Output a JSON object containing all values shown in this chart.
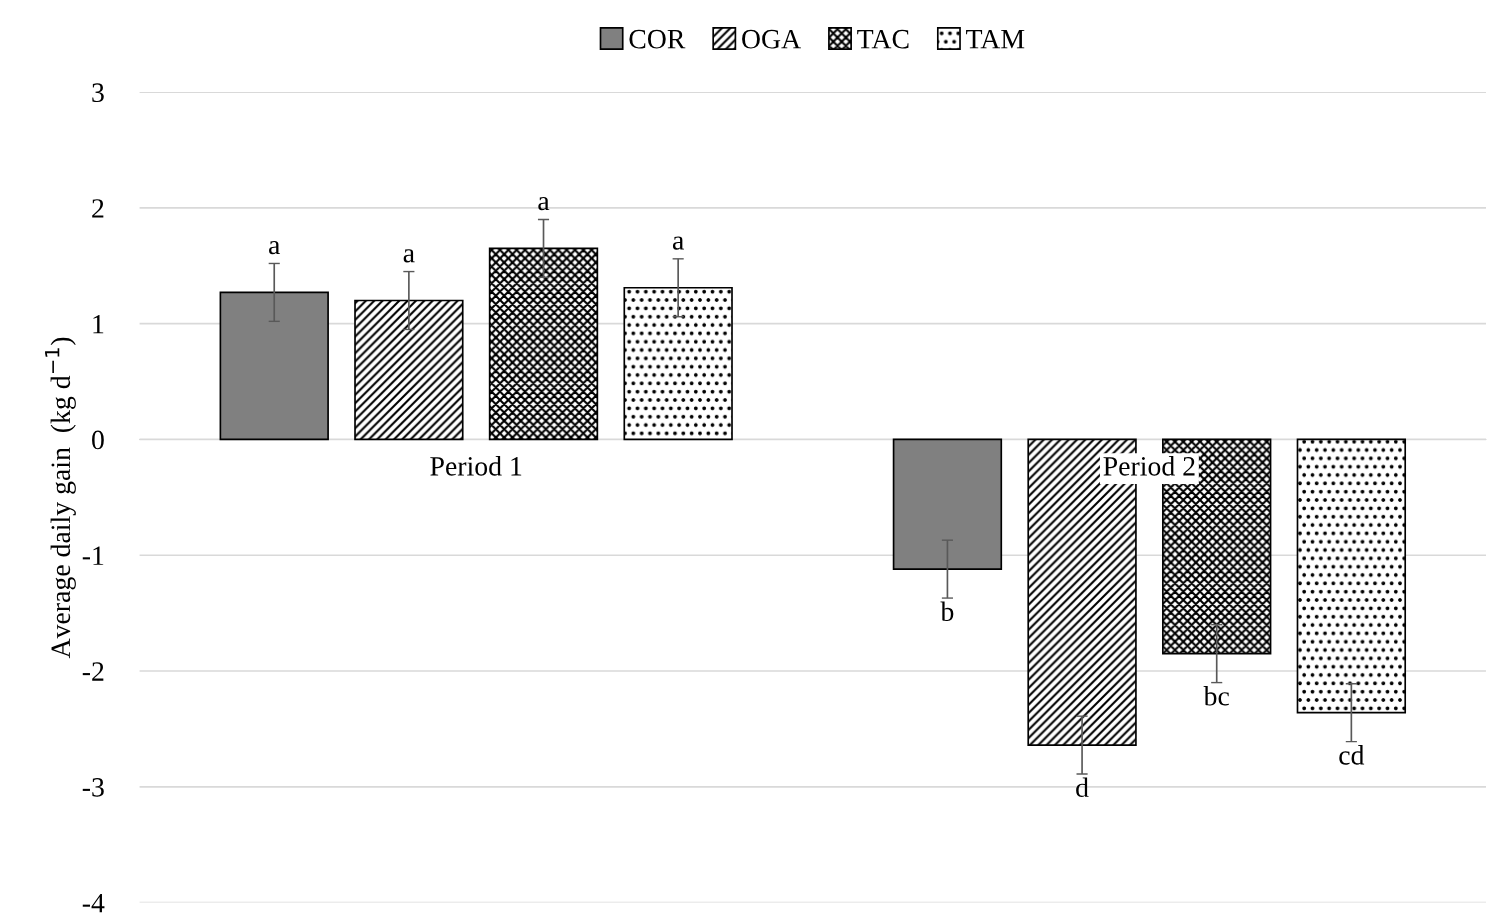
{
  "chart_data": {
    "type": "bar",
    "ylabel": "Average daily gain  (kg d$^{−1}$)",
    "categories": [
      "Period 1",
      "Period 2"
    ],
    "series": [
      {
        "name": "COR",
        "color": "#808080",
        "values": [
          1.27,
          -1.12
        ],
        "errors": [
          0.25,
          0.25
        ],
        "value_labels": [
          "a",
          "b"
        ]
      },
      {
        "name": "OGA",
        "color": "#000000",
        "values": [
          1.2,
          -2.64
        ],
        "errors": [
          0.25,
          0.25
        ],
        "value_labels": [
          "a",
          "d"
        ]
      },
      {
        "name": "TAC",
        "color": "#000000",
        "values": [
          1.65,
          -1.85
        ],
        "errors": [
          0.25,
          0.25
        ],
        "value_labels": [
          "a",
          "bc"
        ]
      },
      {
        "name": "TAM",
        "color": "#000000",
        "values": [
          1.31,
          -2.36
        ],
        "errors": [
          0.25,
          0.25
        ],
        "value_labels": [
          "a",
          "cd"
        ]
      }
    ],
    "ylim": [
      -4,
      3
    ],
    "yticks": [
      -4,
      -3,
      -2,
      -1,
      0,
      1,
      2,
      3
    ],
    "grid": "y",
    "legend": "top"
  }
}
